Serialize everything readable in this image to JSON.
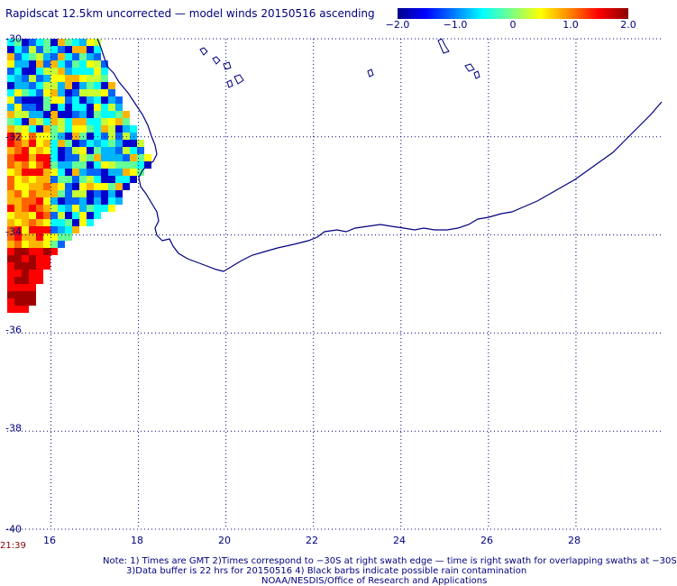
{
  "title": "Rapidscat 12.5km uncorrected — model winds 20150516 ascending",
  "colorbar": {
    "ticks": [
      {
        "label": "−2.0",
        "value": -2.0
      },
      {
        "label": "−1.0",
        "value": -1.0
      },
      {
        "label": "0",
        "value": 0
      },
      {
        "label": "1.0",
        "value": 1.0
      },
      {
        "label": "2.0",
        "value": 2.0
      }
    ]
  },
  "map": {
    "lon_range": [
      15.0,
      30.0
    ],
    "lat_range": [
      -40.0,
      -30.0
    ],
    "x_ticks": [
      {
        "label": "16",
        "value": 16
      },
      {
        "label": "18",
        "value": 18
      },
      {
        "label": "20",
        "value": 20
      },
      {
        "label": "22",
        "value": 22
      },
      {
        "label": "24",
        "value": 24
      },
      {
        "label": "26",
        "value": 26
      },
      {
        "label": "28",
        "value": 28
      }
    ],
    "y_ticks": [
      {
        "label": "-30",
        "value": -30
      },
      {
        "label": "-32",
        "value": -32
      },
      {
        "label": "-34",
        "value": -34
      },
      {
        "label": "-36",
        "value": -36
      },
      {
        "label": "-38",
        "value": -38
      },
      {
        "label": "-40",
        "value": -40
      }
    ],
    "coast_color": "#000080",
    "grid": "dotted"
  },
  "swath_time": "21:39",
  "notes": {
    "line1": "Note: 1) Times are GMT 2)Times correspond to −30S at right swath edge — time is right swath for overlapping swaths at −30S",
    "line2": "3)Data buffer is 22 hrs for 20150516 4) Black barbs indicate possible rain contamination",
    "line3": "NOAA/NESDIS/Office of Research and Applications"
  }
}
